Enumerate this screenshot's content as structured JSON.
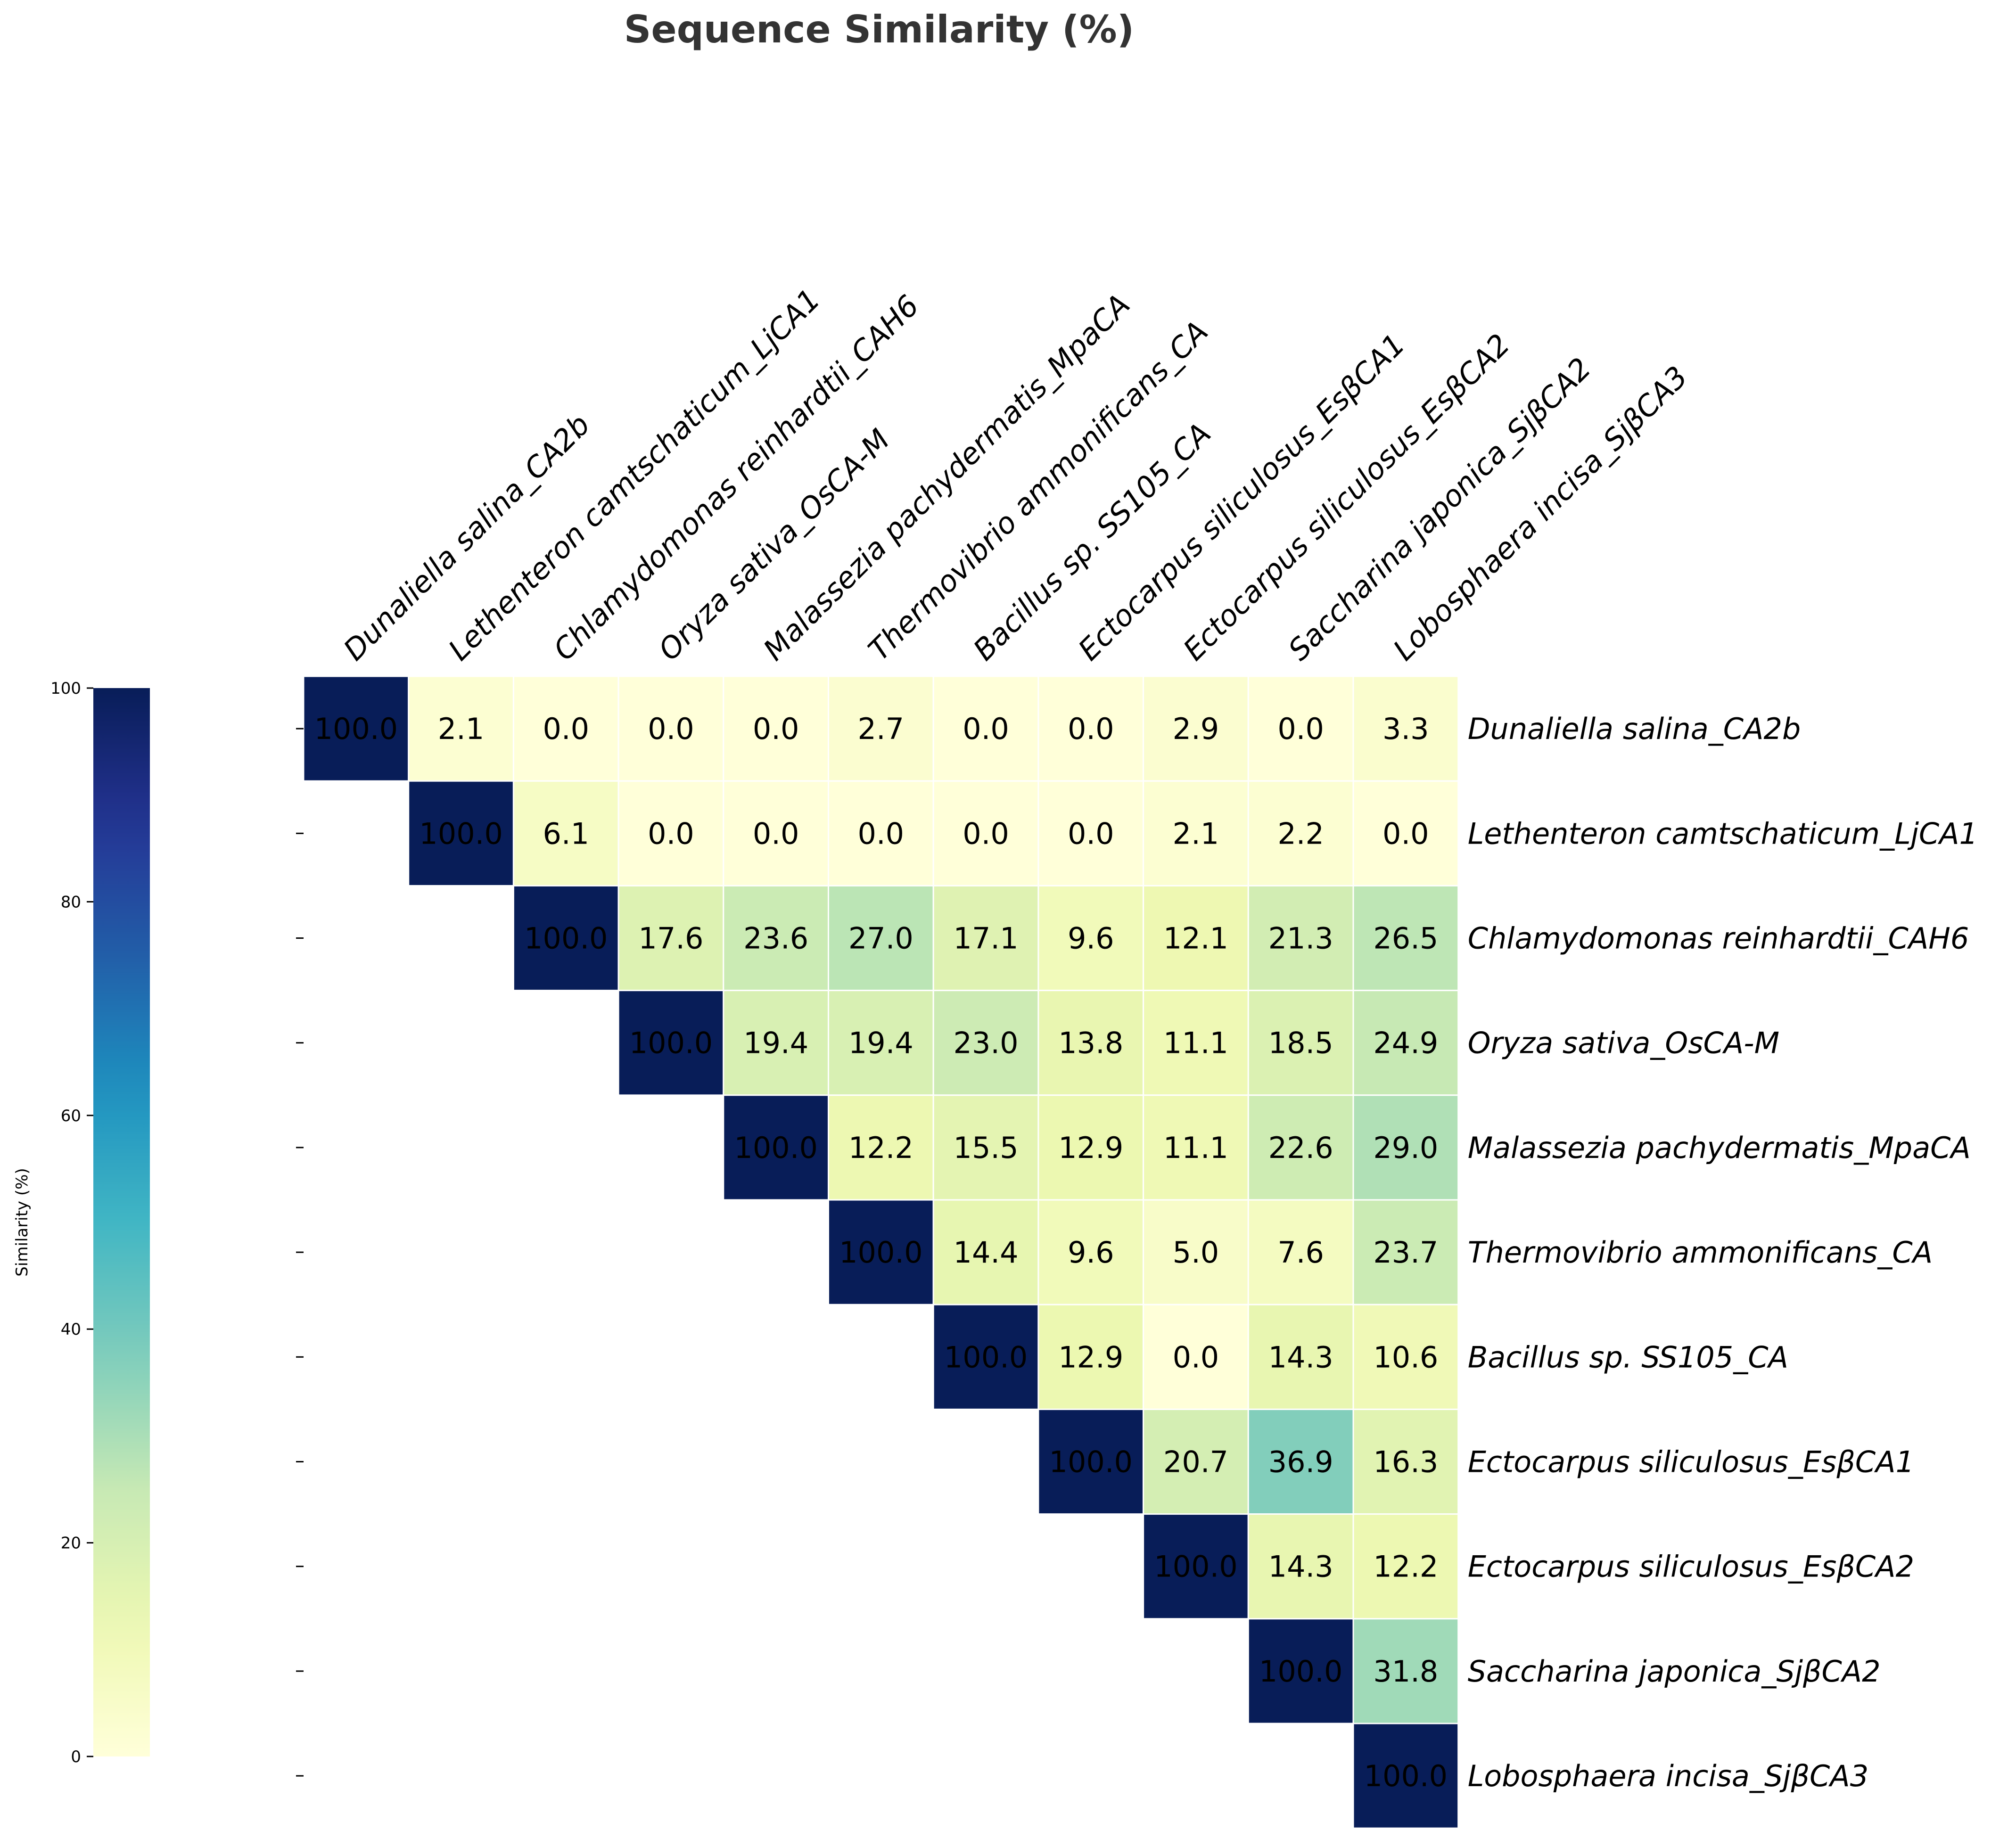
{
  "chart_data": {
    "type": "heatmap",
    "title": "Sequence Similarity (%)",
    "colorbar": {
      "label": "Similarity (%)",
      "range": [
        0,
        100
      ],
      "ticks": [
        "0",
        "20",
        "40",
        "60",
        "80",
        "100"
      ],
      "colormap": "YlGnBu",
      "position": "left"
    },
    "row_labels": [
      "Dunaliella salina_CA2b",
      "Lethenteron camtschaticum_LjCA1",
      "Chlamydomonas reinhardtii_CAH6",
      "Oryza sativa_OsCA-M",
      "Malassezia pachydermatis_MpaCA",
      "Thermovibrio ammonificans_CA",
      "Bacillus sp. SS105_CA",
      "Ectocarpus siliculosus_EsβCA1",
      "Ectocarpus siliculosus_EsβCA2",
      "Saccharina japonica_SjβCA2",
      "Lobosphaera incisa_SjβCA3"
    ],
    "column_labels": [
      "Dunaliella salina_CA2b",
      "Lethenteron camtschaticum_LjCA1",
      "Chlamydomonas reinhardtii_CAH6",
      "Oryza sativa_OsCA-M",
      "Malassezia pachydermatis_MpaCA",
      "Thermovibrio ammonificans_CA",
      "Bacillus sp. SS105_CA",
      "Ectocarpus siliculosus_EsβCA1",
      "Ectocarpus siliculosus_EsβCA2",
      "Saccharina japonica_SjβCA2",
      "Lobosphaera incisa_SjβCA3"
    ],
    "matrix": [
      [
        100.0,
        2.1,
        0.0,
        0.0,
        0.0,
        2.7,
        0.0,
        0.0,
        2.9,
        0.0,
        3.3
      ],
      [
        null,
        100.0,
        6.1,
        0.0,
        0.0,
        0.0,
        0.0,
        0.0,
        2.1,
        2.2,
        0.0
      ],
      [
        null,
        null,
        100.0,
        17.6,
        23.6,
        27.0,
        17.1,
        9.6,
        12.1,
        21.3,
        26.5
      ],
      [
        null,
        null,
        null,
        100.0,
        19.4,
        19.4,
        23.0,
        13.8,
        11.1,
        18.5,
        24.9
      ],
      [
        null,
        null,
        null,
        null,
        100.0,
        12.2,
        15.5,
        12.9,
        11.1,
        22.6,
        29.0
      ],
      [
        null,
        null,
        null,
        null,
        null,
        100.0,
        14.4,
        9.6,
        5.0,
        7.6,
        23.7
      ],
      [
        null,
        null,
        null,
        null,
        null,
        null,
        100.0,
        12.9,
        0.0,
        14.3,
        10.6
      ],
      [
        null,
        null,
        null,
        null,
        null,
        null,
        null,
        100.0,
        20.7,
        36.9,
        16.3
      ],
      [
        null,
        null,
        null,
        null,
        null,
        null,
        null,
        null,
        100.0,
        14.3,
        12.2
      ],
      [
        null,
        null,
        null,
        null,
        null,
        null,
        null,
        null,
        null,
        100.0,
        31.8
      ],
      [
        null,
        null,
        null,
        null,
        null,
        null,
        null,
        null,
        null,
        null,
        100.0
      ]
    ],
    "annotations": "cell values shown with one decimal",
    "grid": false
  }
}
